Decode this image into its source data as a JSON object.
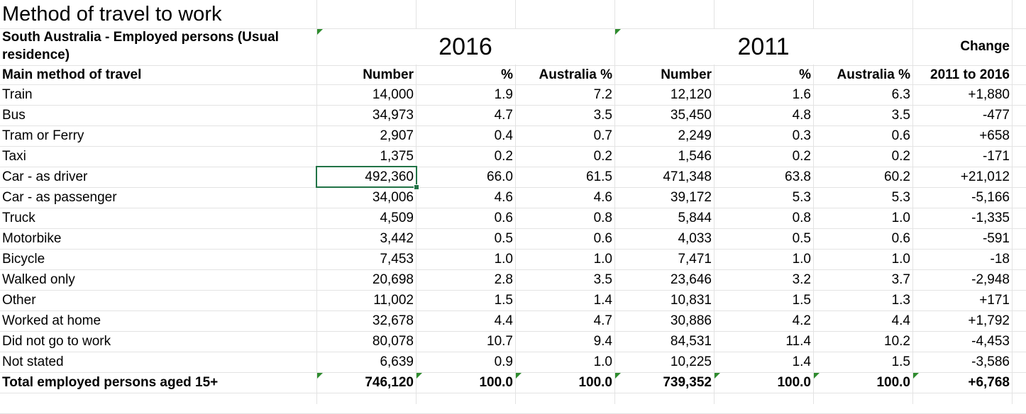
{
  "title": "Method of travel to work",
  "subtitle": "South Australia - Employed persons (Usual residence)",
  "year_2016": "2016",
  "year_2011": "2011",
  "change_header": "Change",
  "columns": [
    "Main method of travel",
    "Number",
    "%",
    "Australia %",
    "Number",
    "%",
    "Australia %",
    "2011 to 2016"
  ],
  "rows": [
    [
      "Train",
      "14,000",
      "1.9",
      "7.2",
      "12,120",
      "1.6",
      "6.3",
      "+1,880"
    ],
    [
      "Bus",
      "34,973",
      "4.7",
      "3.5",
      "35,450",
      "4.8",
      "3.5",
      "-477"
    ],
    [
      "Tram or Ferry",
      "2,907",
      "0.4",
      "0.7",
      "2,249",
      "0.3",
      "0.6",
      "+658"
    ],
    [
      "Taxi",
      "1,375",
      "0.2",
      "0.2",
      "1,546",
      "0.2",
      "0.2",
      "-171"
    ],
    [
      "Car - as driver",
      "492,360",
      "66.0",
      "61.5",
      "471,348",
      "63.8",
      "60.2",
      "+21,012"
    ],
    [
      "Car - as passenger",
      "34,006",
      "4.6",
      "4.6",
      "39,172",
      "5.3",
      "5.3",
      "-5,166"
    ],
    [
      "Truck",
      "4,509",
      "0.6",
      "0.8",
      "5,844",
      "0.8",
      "1.0",
      "-1,335"
    ],
    [
      "Motorbike",
      "3,442",
      "0.5",
      "0.6",
      "4,033",
      "0.5",
      "0.6",
      "-591"
    ],
    [
      "Bicycle",
      "7,453",
      "1.0",
      "1.0",
      "7,471",
      "1.0",
      "1.0",
      "-18"
    ],
    [
      "Walked only",
      "20,698",
      "2.8",
      "3.5",
      "23,646",
      "3.2",
      "3.7",
      "-2,948"
    ],
    [
      "Other",
      "11,002",
      "1.5",
      "1.4",
      "10,831",
      "1.5",
      "1.3",
      "+171"
    ],
    [
      "Worked at home",
      "32,678",
      "4.4",
      "4.7",
      "30,886",
      "4.2",
      "4.4",
      "+1,792"
    ],
    [
      "Did not go to work",
      "80,078",
      "10.7",
      "9.4",
      "84,531",
      "11.4",
      "10.2",
      "-4,453"
    ],
    [
      "Not stated",
      "6,639",
      "0.9",
      "1.0",
      "10,225",
      "1.4",
      "1.5",
      "-3,586"
    ]
  ],
  "total_row": [
    "Total employed persons aged 15+",
    "746,120",
    "100.0",
    "100.0",
    "739,352",
    "100.0",
    "100.0",
    "+6,768"
  ],
  "selected_cell": "492,360",
  "colors": {
    "selection": "#217346",
    "gridline": "#e3e3e3",
    "indicator": "#2e8b2e"
  }
}
